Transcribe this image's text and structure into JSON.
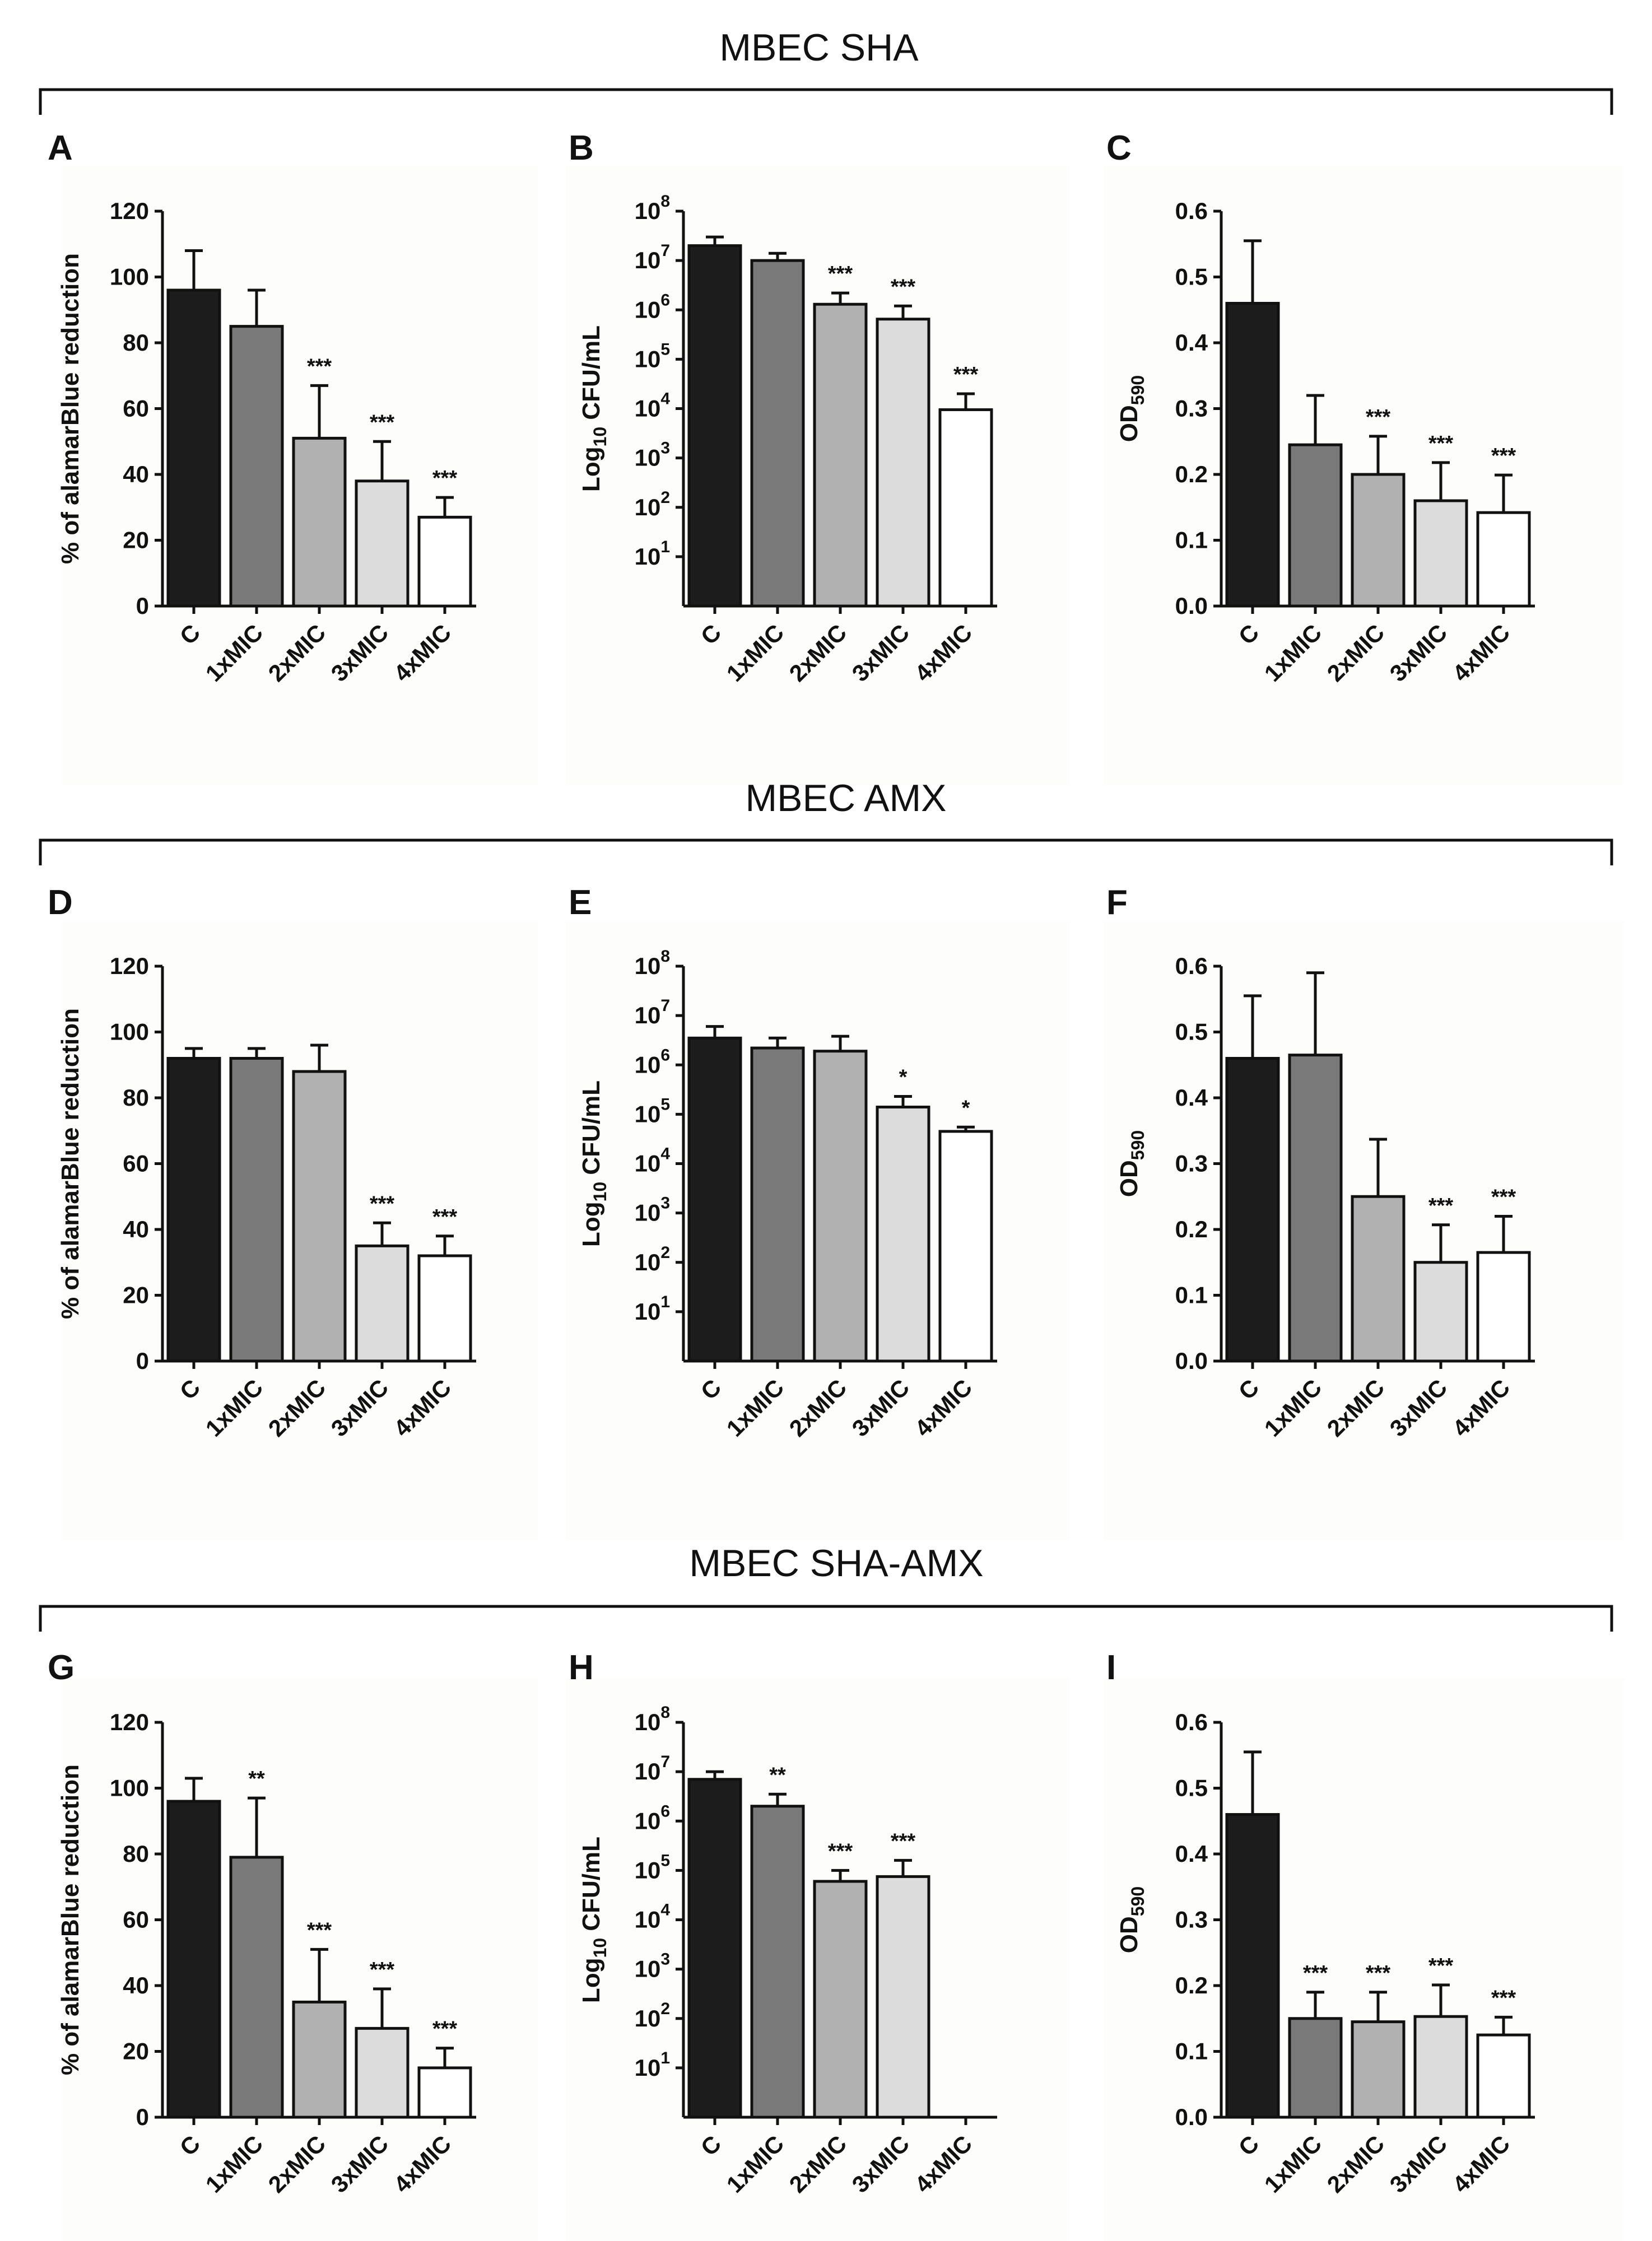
{
  "colors": {
    "bar_fills": [
      "#1c1c1c",
      "#7a7a7a",
      "#b1b1b1",
      "#dcdcdc",
      "#ffffff"
    ],
    "axis": "#111111",
    "panel_bg": "#fdfdfb"
  },
  "groups": [
    {
      "title": "MBEC SHA"
    },
    {
      "title": "MBEC AMX"
    },
    {
      "title": "MBEC SHA-AMX"
    }
  ],
  "chart_data": [
    {
      "panel": "A",
      "type": "bar",
      "scale": "linear",
      "ylabel": "% of alamarBlue reduction",
      "categories": [
        "C",
        "1xMIC",
        "2xMIC",
        "3xMIC",
        "4xMIC"
      ],
      "values": [
        96,
        85,
        51,
        38,
        27
      ],
      "errors": [
        12,
        11,
        16,
        12,
        6
      ],
      "significance": [
        "",
        "",
        "***",
        "***",
        "***"
      ],
      "ylim": [
        0,
        120
      ],
      "ticks": [
        0,
        20,
        40,
        60,
        80,
        100,
        120
      ],
      "tick_labels": [
        "0",
        "20",
        "40",
        "60",
        "80",
        "100",
        "120"
      ]
    },
    {
      "panel": "B",
      "type": "bar",
      "scale": "log",
      "ylabel": "Log10 CFU/mL",
      "categories": [
        "C",
        "1xMIC",
        "2xMIC",
        "3xMIC",
        "4xMIC"
      ],
      "values": [
        20000000,
        10000000,
        1300000,
        650000,
        9500
      ],
      "error_tops": [
        30000000,
        14000000,
        2200000,
        1200000,
        20000
      ],
      "significance": [
        "",
        "",
        "***",
        "***",
        "***"
      ],
      "ylim": [
        1,
        100000000
      ],
      "ticks": [
        10,
        100,
        1000,
        10000,
        100000,
        1000000,
        10000000,
        100000000
      ],
      "tick_exponents": [
        "1",
        "2",
        "3",
        "4",
        "5",
        "6",
        "7",
        "8"
      ]
    },
    {
      "panel": "C",
      "type": "bar",
      "scale": "linear",
      "ylabel": "OD590",
      "categories": [
        "C",
        "1xMIC",
        "2xMIC",
        "3xMIC",
        "4xMIC"
      ],
      "values": [
        0.46,
        0.245,
        0.2,
        0.16,
        0.142
      ],
      "errors": [
        0.095,
        0.075,
        0.058,
        0.058,
        0.057
      ],
      "significance": [
        "",
        "",
        "***",
        "***",
        "***"
      ],
      "ylim": [
        0,
        0.6
      ],
      "ticks": [
        0,
        0.1,
        0.2,
        0.3,
        0.4,
        0.5,
        0.6
      ],
      "tick_labels": [
        "0.0",
        "0.1",
        "0.2",
        "0.3",
        "0.4",
        "0.5",
        "0.6"
      ]
    },
    {
      "panel": "D",
      "type": "bar",
      "scale": "linear",
      "ylabel": "% of alamarBlue reduction",
      "categories": [
        "C",
        "1xMIC",
        "2xMIC",
        "3xMIC",
        "4xMIC"
      ],
      "values": [
        92,
        92,
        88,
        35,
        32
      ],
      "errors": [
        3,
        3,
        8,
        7,
        6
      ],
      "significance": [
        "",
        "",
        "",
        "***",
        "***"
      ],
      "ylim": [
        0,
        120
      ],
      "ticks": [
        0,
        20,
        40,
        60,
        80,
        100,
        120
      ],
      "tick_labels": [
        "0",
        "20",
        "40",
        "60",
        "80",
        "100",
        "120"
      ]
    },
    {
      "panel": "E",
      "type": "bar",
      "scale": "log",
      "ylabel": "Log10 CFU/mL",
      "categories": [
        "C",
        "1xMIC",
        "2xMIC",
        "3xMIC",
        "4xMIC"
      ],
      "values": [
        3500000,
        2200000,
        1900000,
        140000,
        45000
      ],
      "error_tops": [
        6000000,
        3500000,
        3800000,
        230000,
        55000
      ],
      "significance": [
        "",
        "",
        "",
        "*",
        "*"
      ],
      "ylim": [
        1,
        100000000
      ],
      "ticks": [
        10,
        100,
        1000,
        10000,
        100000,
        1000000,
        10000000,
        100000000
      ],
      "tick_exponents": [
        "1",
        "2",
        "3",
        "4",
        "5",
        "6",
        "7",
        "8"
      ]
    },
    {
      "panel": "F",
      "type": "bar",
      "scale": "linear",
      "ylabel": "OD590",
      "categories": [
        "C",
        "1xMIC",
        "2xMIC",
        "3xMIC",
        "4xMIC"
      ],
      "values": [
        0.46,
        0.465,
        0.25,
        0.15,
        0.165
      ],
      "errors": [
        0.095,
        0.125,
        0.087,
        0.057,
        0.055
      ],
      "significance": [
        "",
        "",
        "",
        "***",
        "***"
      ],
      "ylim": [
        0,
        0.6
      ],
      "ticks": [
        0,
        0.1,
        0.2,
        0.3,
        0.4,
        0.5,
        0.6
      ],
      "tick_labels": [
        "0.0",
        "0.1",
        "0.2",
        "0.3",
        "0.4",
        "0.5",
        "0.6"
      ]
    },
    {
      "panel": "G",
      "type": "bar",
      "scale": "linear",
      "ylabel": "% of alamarBlue reduction",
      "categories": [
        "C",
        "1xMIC",
        "2xMIC",
        "3xMIC",
        "4xMIC"
      ],
      "values": [
        96,
        79,
        35,
        27,
        15
      ],
      "errors": [
        7,
        18,
        16,
        12,
        6
      ],
      "significance": [
        "",
        "**",
        "***",
        "***",
        "***"
      ],
      "ylim": [
        0,
        120
      ],
      "ticks": [
        0,
        20,
        40,
        60,
        80,
        100,
        120
      ],
      "tick_labels": [
        "0",
        "20",
        "40",
        "60",
        "80",
        "100",
        "120"
      ]
    },
    {
      "panel": "H",
      "type": "bar",
      "scale": "log",
      "ylabel": "Log10 CFU/mL",
      "categories": [
        "C",
        "1xMIC",
        "2xMIC",
        "3xMIC",
        "4xMIC"
      ],
      "values": [
        7000000,
        2000000,
        60000,
        75000,
        null
      ],
      "error_tops": [
        10000000,
        3500000,
        100000,
        160000,
        null
      ],
      "significance": [
        "",
        "**",
        "***",
        "***",
        ""
      ],
      "ylim": [
        1,
        100000000
      ],
      "ticks": [
        10,
        100,
        1000,
        10000,
        100000,
        1000000,
        10000000,
        100000000
      ],
      "tick_exponents": [
        "1",
        "2",
        "3",
        "4",
        "5",
        "6",
        "7",
        "8"
      ]
    },
    {
      "panel": "I",
      "type": "bar",
      "scale": "linear",
      "ylabel": "OD590",
      "categories": [
        "C",
        "1xMIC",
        "2xMIC",
        "3xMIC",
        "4xMIC"
      ],
      "values": [
        0.46,
        0.15,
        0.145,
        0.153,
        0.125
      ],
      "errors": [
        0.095,
        0.04,
        0.045,
        0.048,
        0.027
      ],
      "significance": [
        "",
        "***",
        "***",
        "***",
        "***"
      ],
      "ylim": [
        0,
        0.6
      ],
      "ticks": [
        0,
        0.1,
        0.2,
        0.3,
        0.4,
        0.5,
        0.6
      ],
      "tick_labels": [
        "0.0",
        "0.1",
        "0.2",
        "0.3",
        "0.4",
        "0.5",
        "0.6"
      ]
    }
  ]
}
